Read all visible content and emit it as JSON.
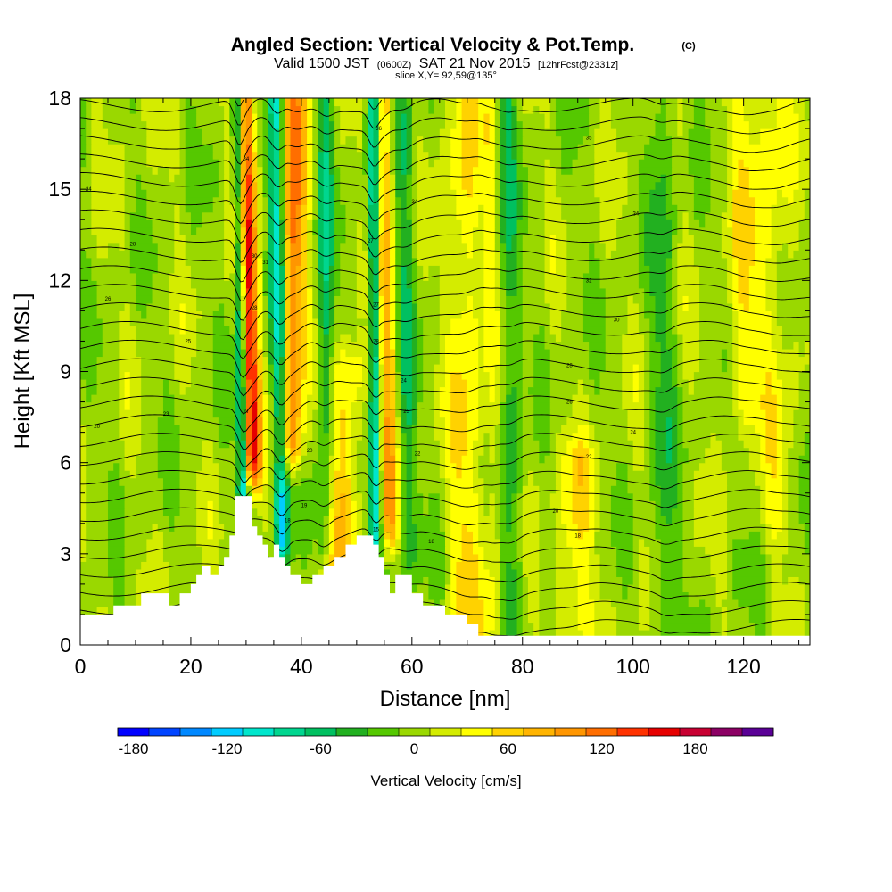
{
  "chart_data": {
    "type": "heatmap",
    "title": "Angled Section: Vertical Velocity & Pot.Temp.",
    "title_mark": "(C)",
    "subtitle_parts": [
      "Valid 1500 JST",
      "(0600Z)",
      "SAT 21 Nov 2015",
      "[12hrFcst@2331z]"
    ],
    "slice_label": "slice X,Y= 92,59@135°",
    "xlabel": "Distance [nm]",
    "ylabel": "Height [Kft MSL]",
    "xlim": [
      0,
      132
    ],
    "ylim": [
      0,
      18
    ],
    "xticks": [
      "0",
      "20",
      "40",
      "60",
      "80",
      "100",
      "120"
    ],
    "yticks": [
      "0",
      "3",
      "6",
      "9",
      "12",
      "15",
      "18"
    ],
    "colorbar": {
      "label": "Vertical Velocity [cm/s]",
      "min": -190,
      "max": 210,
      "step": 20,
      "tick_labels": [
        "-180",
        "-120",
        "-60",
        "0",
        "60",
        "120",
        "180"
      ],
      "tick_values": [
        -180,
        -120,
        -60,
        0,
        60,
        120,
        180
      ],
      "colors": [
        "#0000ff",
        "#0044ff",
        "#0088ff",
        "#00ccff",
        "#00e6cc",
        "#00d68f",
        "#00c060",
        "#22b020",
        "#55c800",
        "#9ad800",
        "#d4ec00",
        "#ffff00",
        "#ffd200",
        "#ffb400",
        "#ff9600",
        "#ff6e00",
        "#ff3200",
        "#e60000",
        "#c80032",
        "#8c0064",
        "#5a0096"
      ]
    },
    "terrain_profile": [
      [
        0,
        1.0
      ],
      [
        6,
        1.0
      ],
      [
        6,
        1.3
      ],
      [
        11,
        1.3
      ],
      [
        11,
        1.7
      ],
      [
        16,
        1.7
      ],
      [
        16,
        1.3
      ],
      [
        18,
        1.3
      ],
      [
        18,
        1.7
      ],
      [
        20,
        1.7
      ],
      [
        20,
        2.0
      ],
      [
        21,
        2.0
      ],
      [
        21,
        2.3
      ],
      [
        22,
        2.3
      ],
      [
        22,
        2.6
      ],
      [
        23.5,
        2.6
      ],
      [
        23.5,
        2.3
      ],
      [
        25,
        2.3
      ],
      [
        25,
        2.6
      ],
      [
        26,
        2.6
      ],
      [
        26,
        2.9
      ],
      [
        27,
        2.9
      ],
      [
        27,
        3.6
      ],
      [
        28,
        3.6
      ],
      [
        28,
        4.9
      ],
      [
        31,
        4.9
      ],
      [
        31,
        3.9
      ],
      [
        32,
        3.9
      ],
      [
        32,
        3.6
      ],
      [
        33,
        3.6
      ],
      [
        33,
        3.3
      ],
      [
        34,
        3.3
      ],
      [
        34,
        2.9
      ],
      [
        35,
        2.9
      ],
      [
        35,
        3.3
      ],
      [
        36,
        3.3
      ],
      [
        36,
        2.9
      ],
      [
        37,
        2.9
      ],
      [
        37,
        2.6
      ],
      [
        38,
        2.6
      ],
      [
        38,
        2.3
      ],
      [
        40,
        2.3
      ],
      [
        40,
        2.0
      ],
      [
        42,
        2.0
      ],
      [
        42,
        2.3
      ],
      [
        44,
        2.3
      ],
      [
        44,
        2.6
      ],
      [
        46,
        2.6
      ],
      [
        46,
        2.9
      ],
      [
        48,
        2.9
      ],
      [
        48,
        3.3
      ],
      [
        50,
        3.3
      ],
      [
        50,
        3.6
      ],
      [
        53,
        3.6
      ],
      [
        53,
        3.3
      ],
      [
        54,
        3.3
      ],
      [
        54,
        2.9
      ],
      [
        55,
        2.9
      ],
      [
        55,
        2.3
      ],
      [
        56,
        2.3
      ],
      [
        56,
        1.7
      ],
      [
        57,
        1.7
      ],
      [
        57,
        2.3
      ],
      [
        60,
        2.3
      ],
      [
        60,
        1.7
      ],
      [
        62,
        1.7
      ],
      [
        62,
        1.3
      ],
      [
        66,
        1.3
      ],
      [
        66,
        1.0
      ],
      [
        70,
        1.0
      ],
      [
        70,
        0.7
      ],
      [
        72,
        0.7
      ],
      [
        72,
        0.3
      ],
      [
        132,
        0.3
      ]
    ],
    "updraft_ridges": [
      {
        "x_base": 31.0,
        "x_top": 29.5,
        "y_base": 6.0,
        "y_top": 18.0,
        "peak": 165,
        "width": 1.7
      },
      {
        "x_base": 38.0,
        "x_top": 39.0,
        "y_base": 6.5,
        "y_top": 18.0,
        "peak": 110,
        "width": 2.3
      },
      {
        "x_base": 46.0,
        "x_top": 49.0,
        "y_base": 2.5,
        "y_top": 9.0,
        "peak": 60,
        "width": 3.5
      },
      {
        "x_base": 56.0,
        "x_top": 54.5,
        "y_base": 4.0,
        "y_top": 18.0,
        "peak": 90,
        "width": 1.8
      },
      {
        "x_base": 70.0,
        "x_top": 69.0,
        "y_base": 0.5,
        "y_top": 18.0,
        "peak": 50,
        "width": 3.0
      },
      {
        "x_base": 75.0,
        "x_top": 74.0,
        "y_base": 0.5,
        "y_top": 18.0,
        "peak": 35,
        "width": 1.5
      },
      {
        "x_base": 89.0,
        "x_top": 90.0,
        "y_base": 0.5,
        "y_top": 6.0,
        "peak": 45,
        "width": 3.5
      },
      {
        "x_base": 120.0,
        "x_top": 121.0,
        "y_base": 8.0,
        "y_top": 18.0,
        "peak": 40,
        "width": 3.5
      },
      {
        "x_base": 126.0,
        "x_top": 126.0,
        "y_base": 4.0,
        "y_top": 18.0,
        "peak": 30,
        "width": 3.0
      }
    ],
    "downdraft_ridges": [
      {
        "x_base": 29.5,
        "x_top": 28.5,
        "y_base": 5.0,
        "y_top": 18.0,
        "peak": -140,
        "width": 1.1
      },
      {
        "x_base": 36.5,
        "x_top": 35.5,
        "y_base": 3.2,
        "y_top": 18.0,
        "peak": -110,
        "width": 1.4
      },
      {
        "x_base": 44.0,
        "x_top": 44.5,
        "y_base": 3.0,
        "y_top": 18.0,
        "peak": -60,
        "width": 1.6
      },
      {
        "x_base": 53.5,
        "x_top": 53.0,
        "y_base": 3.5,
        "y_top": 18.0,
        "peak": -120,
        "width": 1.2
      },
      {
        "x_base": 59.0,
        "x_top": 58.5,
        "y_base": 3.0,
        "y_top": 18.0,
        "peak": -45,
        "width": 2.0
      },
      {
        "x_base": 78.0,
        "x_top": 77.0,
        "y_base": 1.0,
        "y_top": 18.0,
        "peak": -45,
        "width": 2.0
      },
      {
        "x_base": 106.0,
        "x_top": 105.0,
        "y_base": 0.5,
        "y_top": 18.0,
        "peak": -40,
        "width": 2.0
      }
    ],
    "theta_contour_labels": [
      {
        "text": "24",
        "x": 1.5,
        "y": 15.0
      },
      {
        "text": "28",
        "x": 9.5,
        "y": 13.2
      },
      {
        "text": "26",
        "x": 5.0,
        "y": 11.4
      },
      {
        "text": "25",
        "x": 19.5,
        "y": 10.0
      },
      {
        "text": "23",
        "x": 15.5,
        "y": 7.6
      },
      {
        "text": "20",
        "x": 3.0,
        "y": 7.2
      },
      {
        "text": "34",
        "x": 30.0,
        "y": 16.0
      },
      {
        "text": "36",
        "x": 54.0,
        "y": 17.0
      },
      {
        "text": "30",
        "x": 31.5,
        "y": 12.8
      },
      {
        "text": "31",
        "x": 33.5,
        "y": 12.6
      },
      {
        "text": "28",
        "x": 31.5,
        "y": 11.1
      },
      {
        "text": "27",
        "x": 30.0,
        "y": 7.7
      },
      {
        "text": "27",
        "x": 52.5,
        "y": 13.3
      },
      {
        "text": "27",
        "x": 53.5,
        "y": 11.2
      },
      {
        "text": "28",
        "x": 53.5,
        "y": 10.0
      },
      {
        "text": "34",
        "x": 60.5,
        "y": 14.6
      },
      {
        "text": "24",
        "x": 58.5,
        "y": 8.7
      },
      {
        "text": "23",
        "x": 59.0,
        "y": 7.7
      },
      {
        "text": "22",
        "x": 61.0,
        "y": 6.3
      },
      {
        "text": "20",
        "x": 41.5,
        "y": 6.4
      },
      {
        "text": "19",
        "x": 40.5,
        "y": 4.6
      },
      {
        "text": "18",
        "x": 37.5,
        "y": 4.1
      },
      {
        "text": "15",
        "x": 53.5,
        "y": 3.8
      },
      {
        "text": "18",
        "x": 63.5,
        "y": 3.4
      },
      {
        "text": "35",
        "x": 92.0,
        "y": 16.7
      },
      {
        "text": "34",
        "x": 100.5,
        "y": 14.2
      },
      {
        "text": "32",
        "x": 92.0,
        "y": 12.0
      },
      {
        "text": "30",
        "x": 97.0,
        "y": 10.7
      },
      {
        "text": "28",
        "x": 88.5,
        "y": 9.2
      },
      {
        "text": "26",
        "x": 88.5,
        "y": 8.0
      },
      {
        "text": "24",
        "x": 100.0,
        "y": 7.0
      },
      {
        "text": "22",
        "x": 92.0,
        "y": 6.2
      },
      {
        "text": "20",
        "x": 86.0,
        "y": 4.4
      },
      {
        "text": "18",
        "x": 90.0,
        "y": 3.6
      }
    ]
  }
}
